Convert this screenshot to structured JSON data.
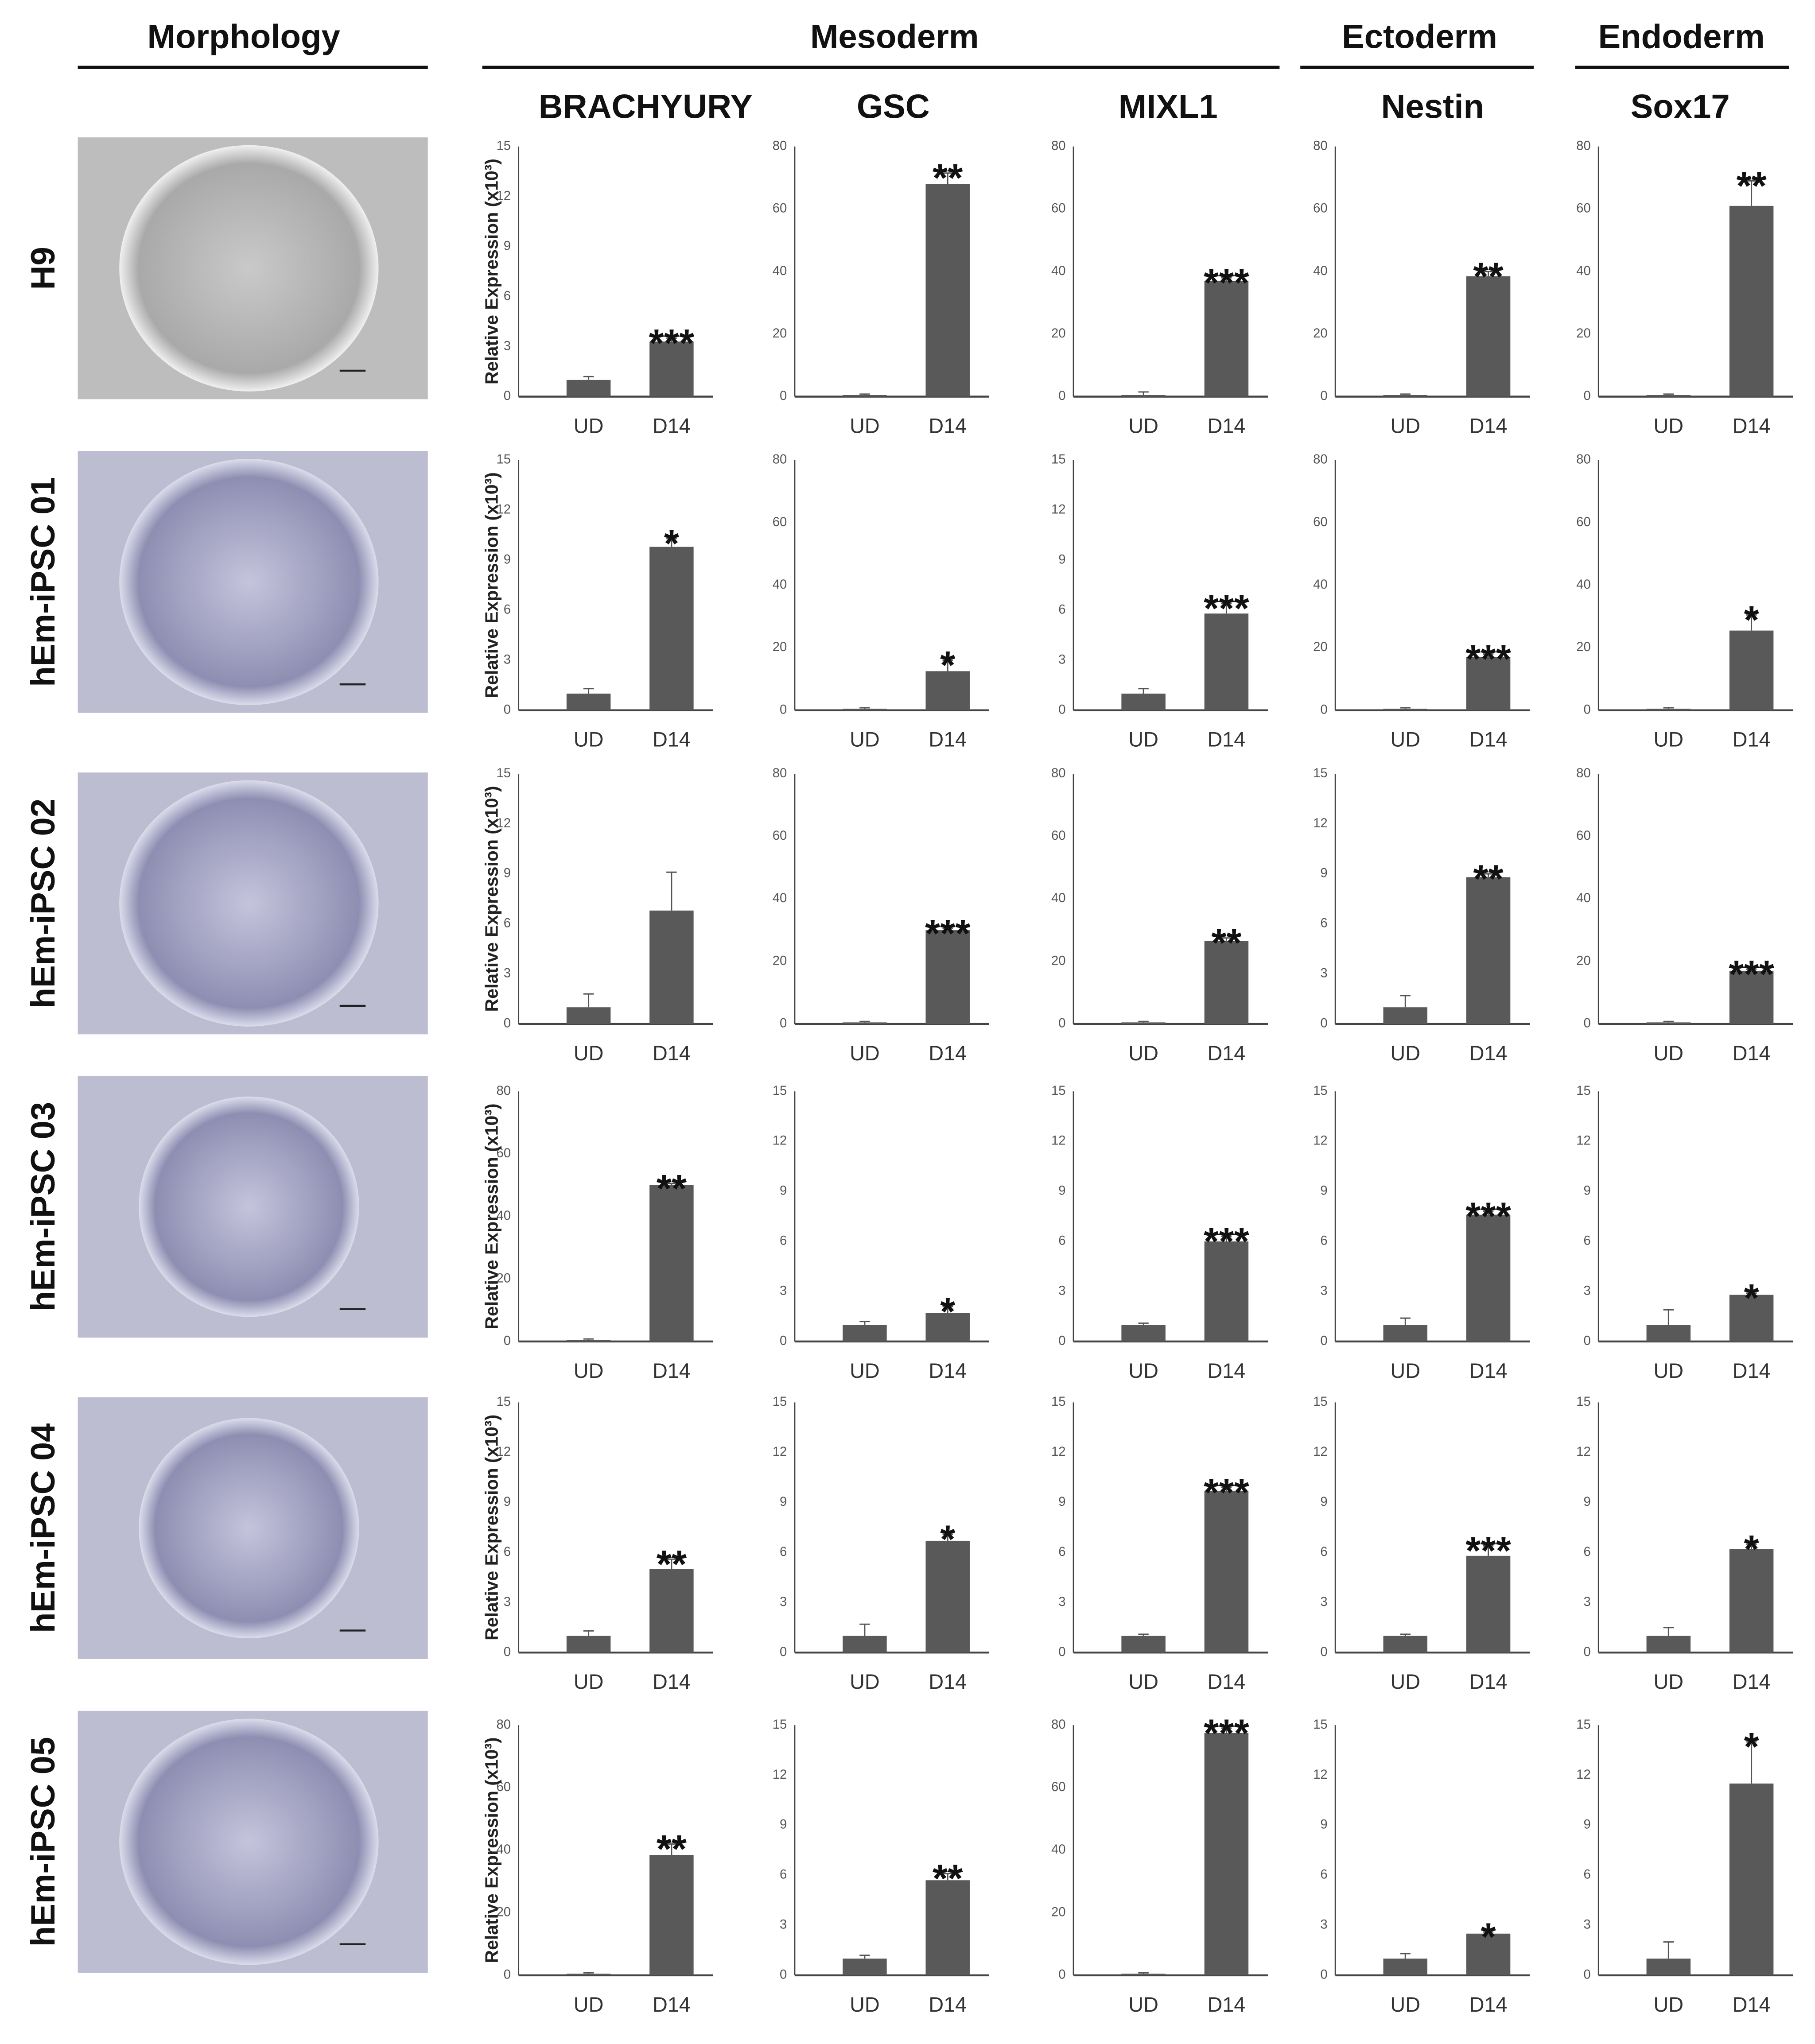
{
  "groups": [
    "Morphology",
    "Mesoderm",
    "Ectoderm",
    "Endoderm"
  ],
  "genes": [
    "BRACHYURY",
    "GSC",
    "MIXL1",
    "Nestin",
    "Sox17"
  ],
  "rows": [
    "H9",
    "hEm-iPSC 01",
    "hEm-iPSC 02",
    "hEm-iPSC 03",
    "hEm-iPSC 04",
    "hEm-iPSC 05"
  ],
  "chart_data": [
    {
      "type": "bar",
      "y_label": "Relative Expression (x10³)",
      "categories": [
        "UD",
        "D14"
      ],
      "values": [
        1,
        3.3
      ],
      "errors": [
        0.2,
        0.2
      ],
      "annotation": "***",
      "ylim": [
        0,
        15
      ],
      "yticks": [
        0,
        3,
        6,
        9,
        12,
        15
      ],
      "color": "#595959"
    },
    {
      "type": "bar",
      "categories": [
        "UD",
        "D14"
      ],
      "values": [
        0.5,
        68
      ],
      "errors": [
        0.3,
        3.5
      ],
      "annotation": "**",
      "ylim": [
        0,
        80
      ],
      "yticks": [
        0,
        20,
        40,
        60,
        80
      ],
      "color": "#595959"
    },
    {
      "type": "bar",
      "categories": [
        "UD",
        "D14"
      ],
      "values": [
        0.5,
        37
      ],
      "errors": [
        1,
        1
      ],
      "annotation": "***",
      "ylim": [
        0,
        80
      ],
      "yticks": [
        0,
        20,
        40,
        60,
        80
      ],
      "color": "#595959"
    },
    {
      "type": "bar",
      "categories": [
        "UD",
        "D14"
      ],
      "values": [
        0.5,
        38.5
      ],
      "errors": [
        0.3,
        1.5
      ],
      "annotation": "**",
      "ylim": [
        0,
        80
      ],
      "yticks": [
        0,
        20,
        40,
        60,
        80
      ],
      "color": "#595959"
    },
    {
      "type": "bar",
      "categories": [
        "UD",
        "D14"
      ],
      "values": [
        0.5,
        61
      ],
      "errors": [
        0.3,
        8
      ],
      "annotation": "**",
      "ylim": [
        0,
        80
      ],
      "yticks": [
        0,
        20,
        40,
        60,
        80
      ],
      "color": "#595959"
    },
    {
      "type": "bar",
      "y_label": "Relative Expression (x10³)",
      "categories": [
        "UD",
        "D14"
      ],
      "values": [
        1,
        9.8
      ],
      "errors": [
        0.3,
        0.5
      ],
      "annotation": "*",
      "ylim": [
        0,
        15
      ],
      "yticks": [
        0,
        3,
        6,
        9,
        12,
        15
      ],
      "color": "#595959"
    },
    {
      "type": "bar",
      "categories": [
        "UD",
        "D14"
      ],
      "values": [
        0.5,
        12.5
      ],
      "errors": [
        0.3,
        3.5
      ],
      "annotation": "*",
      "ylim": [
        0,
        80
      ],
      "yticks": [
        0,
        20,
        40,
        60,
        80
      ],
      "color": "#595959"
    },
    {
      "type": "bar",
      "categories": [
        "UD",
        "D14"
      ],
      "values": [
        1,
        5.8
      ],
      "errors": [
        0.3,
        0.6
      ],
      "annotation": "***",
      "ylim": [
        0,
        15
      ],
      "yticks": [
        0,
        3,
        6,
        9,
        12,
        15
      ],
      "color": "#595959"
    },
    {
      "type": "bar",
      "categories": [
        "UD",
        "D14"
      ],
      "values": [
        0.5,
        17
      ],
      "errors": [
        0.3,
        1
      ],
      "annotation": "***",
      "ylim": [
        0,
        80
      ],
      "yticks": [
        0,
        20,
        40,
        60,
        80
      ],
      "color": "#595959"
    },
    {
      "type": "bar",
      "categories": [
        "UD",
        "D14"
      ],
      "values": [
        0.5,
        25.5
      ],
      "errors": [
        0.3,
        5
      ],
      "annotation": "*",
      "ylim": [
        0,
        80
      ],
      "yticks": [
        0,
        20,
        40,
        60,
        80
      ],
      "color": "#595959"
    },
    {
      "type": "bar",
      "y_label": "Relative Expression (x10³)",
      "categories": [
        "UD",
        "D14"
      ],
      "values": [
        1,
        6.8
      ],
      "errors": [
        0.8,
        2.3
      ],
      "ylim": [
        0,
        15
      ],
      "yticks": [
        0,
        3,
        6,
        9,
        12,
        15
      ],
      "color": "#595959"
    },
    {
      "type": "bar",
      "categories": [
        "UD",
        "D14"
      ],
      "values": [
        0.5,
        30
      ],
      "errors": [
        0.3,
        0.5
      ],
      "annotation": "***",
      "ylim": [
        0,
        80
      ],
      "yticks": [
        0,
        20,
        40,
        60,
        80
      ],
      "color": "#595959"
    },
    {
      "type": "bar",
      "categories": [
        "UD",
        "D14"
      ],
      "values": [
        0.5,
        26.5
      ],
      "errors": [
        0.3,
        1
      ],
      "annotation": "**",
      "ylim": [
        0,
        80
      ],
      "yticks": [
        0,
        20,
        40,
        60,
        80
      ],
      "color": "#595959"
    },
    {
      "type": "bar",
      "categories": [
        "UD",
        "D14"
      ],
      "values": [
        1,
        8.8
      ],
      "errors": [
        0.7,
        0.2
      ],
      "annotation": "**",
      "ylim": [
        0,
        15
      ],
      "yticks": [
        0,
        3,
        6,
        9,
        12,
        15
      ],
      "color": "#595959"
    },
    {
      "type": "bar",
      "categories": [
        "UD",
        "D14"
      ],
      "values": [
        0.5,
        17
      ],
      "errors": [
        0.3,
        0.5
      ],
      "annotation": "***",
      "ylim": [
        0,
        80
      ],
      "yticks": [
        0,
        20,
        40,
        60,
        80
      ],
      "color": "#595959"
    },
    {
      "type": "bar",
      "y_label": "Relative Expression (x10³)",
      "categories": [
        "UD",
        "D14"
      ],
      "values": [
        0.5,
        50
      ],
      "errors": [
        0.3,
        0.5
      ],
      "annotation": "**",
      "ylim": [
        0,
        80
      ],
      "yticks": [
        0,
        20,
        40,
        60,
        80
      ],
      "color": "#595959"
    },
    {
      "type": "bar",
      "categories": [
        "UD",
        "D14"
      ],
      "values": [
        1,
        1.7
      ],
      "errors": [
        0.2,
        0.4
      ],
      "annotation": "*",
      "ylim": [
        0,
        15
      ],
      "yticks": [
        0,
        3,
        6,
        9,
        12,
        15
      ],
      "color": "#595959"
    },
    {
      "type": "bar",
      "categories": [
        "UD",
        "D14"
      ],
      "values": [
        1,
        6
      ],
      "errors": [
        0.1,
        0.3
      ],
      "annotation": "***",
      "ylim": [
        0,
        15
      ],
      "yticks": [
        0,
        3,
        6,
        9,
        12,
        15
      ],
      "color": "#595959"
    },
    {
      "type": "bar",
      "categories": [
        "UD",
        "D14"
      ],
      "values": [
        1,
        7.6
      ],
      "errors": [
        0.4,
        0.2
      ],
      "annotation": "***",
      "ylim": [
        0,
        15
      ],
      "yticks": [
        0,
        3,
        6,
        9,
        12,
        15
      ],
      "color": "#595959"
    },
    {
      "type": "bar",
      "categories": [
        "UD",
        "D14"
      ],
      "values": [
        1,
        2.8
      ],
      "errors": [
        0.9,
        0.1
      ],
      "annotation": "*",
      "ylim": [
        0,
        15
      ],
      "yticks": [
        0,
        3,
        6,
        9,
        12,
        15
      ],
      "color": "#595959"
    },
    {
      "type": "bar",
      "y_label": "Relative Expression (x10³)",
      "categories": [
        "UD",
        "D14"
      ],
      "values": [
        1,
        5
      ],
      "errors": [
        0.3,
        0.6
      ],
      "annotation": "**",
      "ylim": [
        0,
        15
      ],
      "yticks": [
        0,
        3,
        6,
        9,
        12,
        15
      ],
      "color": "#595959"
    },
    {
      "type": "bar",
      "categories": [
        "UD",
        "D14"
      ],
      "values": [
        1,
        6.7
      ],
      "errors": [
        0.7,
        0.4
      ],
      "annotation": "*",
      "ylim": [
        0,
        15
      ],
      "yticks": [
        0,
        3,
        6,
        9,
        12,
        15
      ],
      "color": "#595959"
    },
    {
      "type": "bar",
      "categories": [
        "UD",
        "D14"
      ],
      "values": [
        1,
        9.7
      ],
      "errors": [
        0.1,
        0.2
      ],
      "annotation": "***",
      "ylim": [
        0,
        15
      ],
      "yticks": [
        0,
        3,
        6,
        9,
        12,
        15
      ],
      "color": "#595959"
    },
    {
      "type": "bar",
      "categories": [
        "UD",
        "D14"
      ],
      "values": [
        1,
        5.8
      ],
      "errors": [
        0.1,
        0.6
      ],
      "annotation": "***",
      "ylim": [
        0,
        15
      ],
      "yticks": [
        0,
        3,
        6,
        9,
        12,
        15
      ],
      "color": "#595959"
    },
    {
      "type": "bar",
      "categories": [
        "UD",
        "D14"
      ],
      "values": [
        1,
        6.2
      ],
      "errors": [
        0.5,
        0.3
      ],
      "annotation": "*",
      "ylim": [
        0,
        15
      ],
      "yticks": [
        0,
        3,
        6,
        9,
        12,
        15
      ],
      "color": "#595959"
    },
    {
      "type": "bar",
      "y_label": "Relative Expression (x10³)",
      "categories": [
        "UD",
        "D14"
      ],
      "values": [
        0.5,
        38.5
      ],
      "errors": [
        0.3,
        3.5
      ],
      "annotation": "**",
      "ylim": [
        0,
        80
      ],
      "yticks": [
        0,
        20,
        40,
        60,
        80
      ],
      "color": "#595959"
    },
    {
      "type": "bar",
      "categories": [
        "UD",
        "D14"
      ],
      "values": [
        1,
        5.7
      ],
      "errors": [
        0.2,
        0.4
      ],
      "annotation": "**",
      "ylim": [
        0,
        15
      ],
      "yticks": [
        0,
        3,
        6,
        9,
        12,
        15
      ],
      "color": "#595959"
    },
    {
      "type": "bar",
      "categories": [
        "UD",
        "D14"
      ],
      "values": [
        0.5,
        77.5
      ],
      "errors": [
        0.3,
        1.5
      ],
      "annotation": "***",
      "ylim": [
        0,
        80
      ],
      "yticks": [
        0,
        20,
        40,
        60,
        80
      ],
      "color": "#595959"
    },
    {
      "type": "bar",
      "categories": [
        "UD",
        "D14"
      ],
      "values": [
        1,
        2.5
      ],
      "errors": [
        0.3,
        0.1
      ],
      "annotation": "*",
      "ylim": [
        0,
        15
      ],
      "yticks": [
        0,
        3,
        6,
        9,
        12,
        15
      ],
      "color": "#595959"
    },
    {
      "type": "bar",
      "categories": [
        "UD",
        "D14"
      ],
      "values": [
        1,
        11.5
      ],
      "errors": [
        1,
        2.5
      ],
      "annotation": "*",
      "ylim": [
        0,
        15
      ],
      "yticks": [
        0,
        3,
        6,
        9,
        12,
        15
      ],
      "color": "#595959"
    }
  ]
}
